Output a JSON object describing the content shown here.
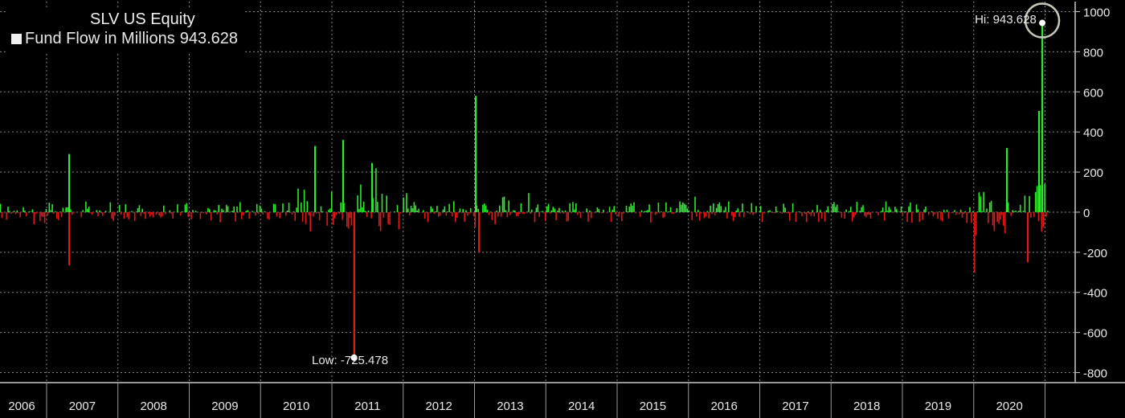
{
  "legend": {
    "title": "SLV US Equity",
    "series_label": "Fund Flow in Millions",
    "series_value": "943.628"
  },
  "annotations": {
    "high": "Hi: 943.628",
    "low": "Low: -725.478"
  },
  "colors": {
    "background": "#000000",
    "positive": "#2fe82f",
    "negative": "#e01818",
    "grid": "#8a8a8a",
    "text": "#e8e8e8"
  },
  "chart_data": {
    "type": "bar",
    "title": "SLV US Equity",
    "series": [
      {
        "name": "Fund Flow in Millions",
        "last_value": 943.628
      }
    ],
    "ylim": [
      -850,
      1050
    ],
    "y_ticks": [
      1000,
      800,
      600,
      400,
      200,
      0,
      -200,
      -400,
      -600,
      -800
    ],
    "y_tick_labels": [
      "1000",
      "800",
      "600",
      "400",
      "200",
      "0",
      "-200",
      "-400",
      "-600",
      "-800"
    ],
    "x_labels": [
      "2006",
      "2007",
      "2008",
      "2009",
      "2010",
      "2011",
      "2012",
      "2013",
      "2014",
      "2015",
      "2016",
      "2017",
      "2018",
      "2019",
      "2020"
    ],
    "x_start_year": 2006.3,
    "x_end_year": 2021.15,
    "grid": true,
    "legend_position": "top-left",
    "high": {
      "value": 943.628,
      "date_year": 2020.95
    },
    "low": {
      "value": -725.478,
      "date_year": 2011.3
    },
    "notable_spikes": [
      {
        "date_year": 2007.3,
        "value": 290
      },
      {
        "date_year": 2007.3,
        "value": -265
      },
      {
        "date_year": 2010.75,
        "value": 330
      },
      {
        "date_year": 2011.15,
        "value": 360
      },
      {
        "date_year": 2011.55,
        "value": 245
      },
      {
        "date_year": 2013.0,
        "value": 580
      },
      {
        "date_year": 2013.05,
        "value": -200
      },
      {
        "date_year": 2020.45,
        "value": 320
      },
      {
        "date_year": 2020.75,
        "value": -250
      },
      {
        "date_year": 2020.9,
        "value": 505
      },
      {
        "date_year": 2020.95,
        "value": 943.628
      }
    ]
  }
}
